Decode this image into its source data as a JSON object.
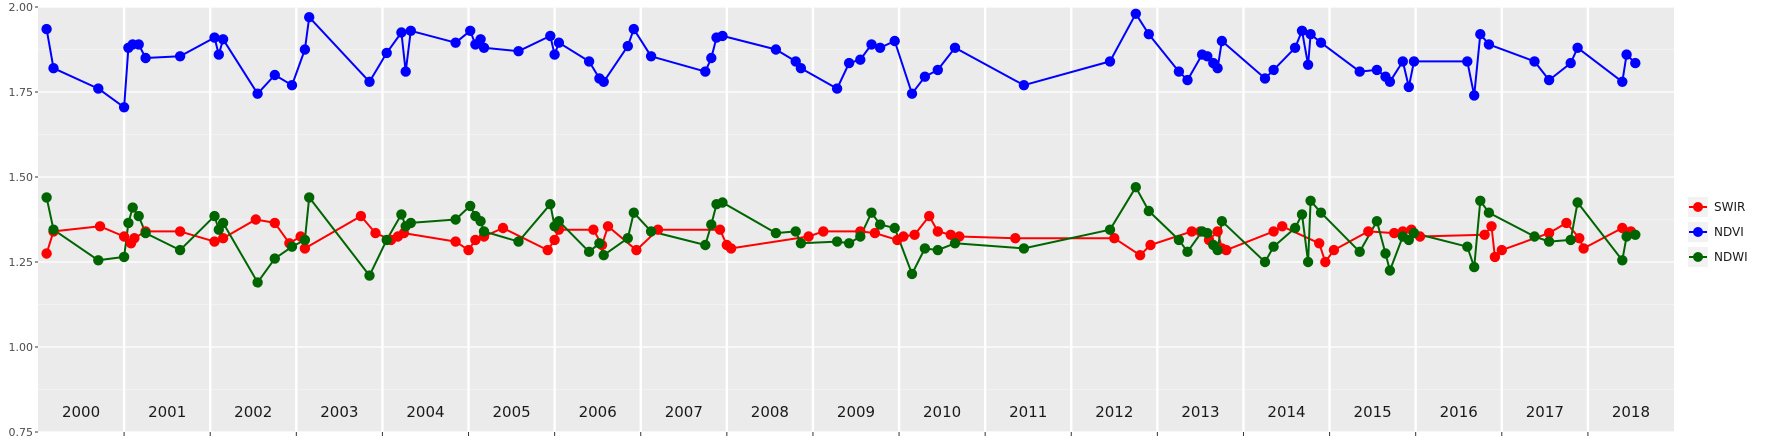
{
  "chart_data": {
    "type": "line",
    "title": "",
    "xlabel": "",
    "ylabel": "",
    "xlim": [
      2000.0,
      2019.0
    ],
    "ylim": [
      0.75,
      2.0
    ],
    "y_ticks": [
      "0.75",
      "1.00",
      "1.25",
      "1.50",
      "1.75",
      "2.00"
    ],
    "y_tick_values": [
      0.75,
      1.0,
      1.25,
      1.5,
      1.75,
      2.0
    ],
    "year_labels": [
      "2000",
      "2001",
      "2002",
      "2003",
      "2004",
      "2005",
      "2006",
      "2007",
      "2008",
      "2009",
      "2010",
      "2011",
      "2012",
      "2013",
      "2014",
      "2015",
      "2016",
      "2017",
      "2018"
    ],
    "year_values": [
      2000,
      2001,
      2002,
      2003,
      2004,
      2005,
      2006,
      2007,
      2008,
      2009,
      2010,
      2011,
      2012,
      2013,
      2014,
      2015,
      2016,
      2017,
      2018
    ],
    "grid": true,
    "legend_position": "right",
    "series": [
      {
        "name": "SWIR",
        "color": "#ff0000",
        "points": [
          [
            2000.1,
            1.275
          ],
          [
            2000.18,
            1.34
          ],
          [
            2000.72,
            1.355
          ],
          [
            2001.0,
            1.325
          ],
          [
            2001.08,
            1.305
          ],
          [
            2001.12,
            1.32
          ],
          [
            2001.25,
            1.34
          ],
          [
            2001.65,
            1.34
          ],
          [
            2002.05,
            1.31
          ],
          [
            2002.15,
            1.32
          ],
          [
            2002.53,
            1.375
          ],
          [
            2002.75,
            1.365
          ],
          [
            2002.92,
            1.305
          ],
          [
            2003.05,
            1.325
          ],
          [
            2003.1,
            1.29
          ],
          [
            2003.75,
            1.385
          ],
          [
            2003.92,
            1.335
          ],
          [
            2004.1,
            1.315
          ],
          [
            2004.18,
            1.325
          ],
          [
            2004.25,
            1.335
          ],
          [
            2004.85,
            1.31
          ],
          [
            2005.0,
            1.285
          ],
          [
            2005.08,
            1.315
          ],
          [
            2005.18,
            1.325
          ],
          [
            2005.4,
            1.35
          ],
          [
            2005.92,
            1.285
          ],
          [
            2006.0,
            1.315
          ],
          [
            2006.05,
            1.345
          ],
          [
            2006.45,
            1.345
          ],
          [
            2006.55,
            1.3
          ],
          [
            2006.62,
            1.355
          ],
          [
            2006.95,
            1.285
          ],
          [
            2007.2,
            1.345
          ],
          [
            2007.92,
            1.345
          ],
          [
            2008.0,
            1.3
          ],
          [
            2008.05,
            1.29
          ],
          [
            2008.95,
            1.325
          ],
          [
            2009.12,
            1.34
          ],
          [
            2009.55,
            1.34
          ],
          [
            2009.72,
            1.335
          ],
          [
            2009.98,
            1.315
          ],
          [
            2010.05,
            1.325
          ],
          [
            2010.18,
            1.33
          ],
          [
            2010.35,
            1.385
          ],
          [
            2010.45,
            1.34
          ],
          [
            2010.6,
            1.33
          ],
          [
            2010.7,
            1.325
          ],
          [
            2011.35,
            1.32
          ],
          [
            2012.5,
            1.32
          ],
          [
            2012.8,
            1.27
          ],
          [
            2012.92,
            1.3
          ],
          [
            2013.4,
            1.34
          ],
          [
            2013.5,
            1.34
          ],
          [
            2013.6,
            1.315
          ],
          [
            2013.7,
            1.34
          ],
          [
            2013.75,
            1.29
          ],
          [
            2013.8,
            1.285
          ],
          [
            2014.35,
            1.34
          ],
          [
            2014.45,
            1.355
          ],
          [
            2014.88,
            1.305
          ],
          [
            2014.95,
            1.25
          ],
          [
            2015.05,
            1.285
          ],
          [
            2015.45,
            1.34
          ],
          [
            2015.75,
            1.335
          ],
          [
            2015.85,
            1.34
          ],
          [
            2015.95,
            1.345
          ],
          [
            2016.05,
            1.325
          ],
          [
            2016.8,
            1.33
          ],
          [
            2016.88,
            1.355
          ],
          [
            2016.92,
            1.265
          ],
          [
            2017.0,
            1.285
          ],
          [
            2017.55,
            1.335
          ],
          [
            2017.75,
            1.365
          ],
          [
            2017.9,
            1.32
          ],
          [
            2017.95,
            1.29
          ],
          [
            2018.4,
            1.35
          ],
          [
            2018.5,
            1.34
          ]
        ]
      },
      {
        "name": "NDVI",
        "color": "#0000ff",
        "points": [
          [
            2000.1,
            1.935
          ],
          [
            2000.18,
            1.82
          ],
          [
            2000.7,
            1.76
          ],
          [
            2001.0,
            1.705
          ],
          [
            2001.05,
            1.88
          ],
          [
            2001.1,
            1.89
          ],
          [
            2001.17,
            1.89
          ],
          [
            2001.25,
            1.85
          ],
          [
            2001.65,
            1.855
          ],
          [
            2002.05,
            1.91
          ],
          [
            2002.1,
            1.86
          ],
          [
            2002.15,
            1.905
          ],
          [
            2002.55,
            1.745
          ],
          [
            2002.75,
            1.8
          ],
          [
            2002.95,
            1.77
          ],
          [
            2003.1,
            1.875
          ],
          [
            2003.15,
            1.97
          ],
          [
            2003.85,
            1.78
          ],
          [
            2004.05,
            1.865
          ],
          [
            2004.22,
            1.925
          ],
          [
            2004.27,
            1.81
          ],
          [
            2004.33,
            1.93
          ],
          [
            2004.85,
            1.895
          ],
          [
            2005.02,
            1.93
          ],
          [
            2005.08,
            1.89
          ],
          [
            2005.14,
            1.905
          ],
          [
            2005.18,
            1.88
          ],
          [
            2005.58,
            1.87
          ],
          [
            2005.95,
            1.915
          ],
          [
            2006.0,
            1.86
          ],
          [
            2006.05,
            1.895
          ],
          [
            2006.4,
            1.84
          ],
          [
            2006.52,
            1.79
          ],
          [
            2006.57,
            1.78
          ],
          [
            2006.85,
            1.885
          ],
          [
            2006.92,
            1.935
          ],
          [
            2007.12,
            1.855
          ],
          [
            2007.75,
            1.81
          ],
          [
            2007.82,
            1.85
          ],
          [
            2007.88,
            1.91
          ],
          [
            2007.95,
            1.915
          ],
          [
            2008.57,
            1.875
          ],
          [
            2008.8,
            1.84
          ],
          [
            2008.86,
            1.82
          ],
          [
            2009.28,
            1.76
          ],
          [
            2009.42,
            1.835
          ],
          [
            2009.55,
            1.845
          ],
          [
            2009.68,
            1.89
          ],
          [
            2009.78,
            1.88
          ],
          [
            2009.95,
            1.9
          ],
          [
            2010.15,
            1.745
          ],
          [
            2010.3,
            1.795
          ],
          [
            2010.45,
            1.815
          ],
          [
            2010.65,
            1.88
          ],
          [
            2011.45,
            1.77
          ],
          [
            2012.45,
            1.84
          ],
          [
            2012.75,
            1.98
          ],
          [
            2012.9,
            1.92
          ],
          [
            2013.25,
            1.81
          ],
          [
            2013.35,
            1.785
          ],
          [
            2013.52,
            1.86
          ],
          [
            2013.58,
            1.855
          ],
          [
            2013.65,
            1.835
          ],
          [
            2013.7,
            1.82
          ],
          [
            2013.75,
            1.9
          ],
          [
            2014.25,
            1.79
          ],
          [
            2014.35,
            1.815
          ],
          [
            2014.6,
            1.88
          ],
          [
            2014.68,
            1.93
          ],
          [
            2014.75,
            1.83
          ],
          [
            2014.78,
            1.92
          ],
          [
            2014.9,
            1.895
          ],
          [
            2015.35,
            1.81
          ],
          [
            2015.55,
            1.815
          ],
          [
            2015.65,
            1.795
          ],
          [
            2015.7,
            1.78
          ],
          [
            2015.85,
            1.84
          ],
          [
            2015.92,
            1.765
          ],
          [
            2015.98,
            1.84
          ],
          [
            2016.6,
            1.84
          ],
          [
            2016.68,
            1.74
          ],
          [
            2016.75,
            1.92
          ],
          [
            2016.85,
            1.89
          ],
          [
            2017.38,
            1.84
          ],
          [
            2017.55,
            1.785
          ],
          [
            2017.8,
            1.835
          ],
          [
            2017.88,
            1.88
          ],
          [
            2018.4,
            1.78
          ],
          [
            2018.45,
            1.86
          ],
          [
            2018.55,
            1.835
          ]
        ]
      },
      {
        "name": "NDWI",
        "color": "#006400",
        "points": [
          [
            2000.1,
            1.44
          ],
          [
            2000.18,
            1.345
          ],
          [
            2000.7,
            1.255
          ],
          [
            2001.0,
            1.265
          ],
          [
            2001.05,
            1.365
          ],
          [
            2001.1,
            1.41
          ],
          [
            2001.17,
            1.385
          ],
          [
            2001.25,
            1.335
          ],
          [
            2001.65,
            1.285
          ],
          [
            2002.05,
            1.385
          ],
          [
            2002.1,
            1.345
          ],
          [
            2002.15,
            1.365
          ],
          [
            2002.55,
            1.19
          ],
          [
            2002.75,
            1.26
          ],
          [
            2002.95,
            1.295
          ],
          [
            2003.1,
            1.315
          ],
          [
            2003.15,
            1.44
          ],
          [
            2003.85,
            1.21
          ],
          [
            2004.05,
            1.315
          ],
          [
            2004.22,
            1.39
          ],
          [
            2004.27,
            1.355
          ],
          [
            2004.33,
            1.365
          ],
          [
            2004.85,
            1.375
          ],
          [
            2005.02,
            1.415
          ],
          [
            2005.08,
            1.385
          ],
          [
            2005.14,
            1.37
          ],
          [
            2005.18,
            1.34
          ],
          [
            2005.58,
            1.31
          ],
          [
            2005.95,
            1.42
          ],
          [
            2006.0,
            1.355
          ],
          [
            2006.05,
            1.37
          ],
          [
            2006.4,
            1.28
          ],
          [
            2006.52,
            1.305
          ],
          [
            2006.57,
            1.27
          ],
          [
            2006.85,
            1.32
          ],
          [
            2006.92,
            1.395
          ],
          [
            2007.12,
            1.34
          ],
          [
            2007.75,
            1.3
          ],
          [
            2007.82,
            1.36
          ],
          [
            2007.88,
            1.42
          ],
          [
            2007.95,
            1.425
          ],
          [
            2008.57,
            1.335
          ],
          [
            2008.8,
            1.34
          ],
          [
            2008.86,
            1.305
          ],
          [
            2009.28,
            1.31
          ],
          [
            2009.42,
            1.305
          ],
          [
            2009.55,
            1.325
          ],
          [
            2009.68,
            1.395
          ],
          [
            2009.78,
            1.36
          ],
          [
            2009.95,
            1.35
          ],
          [
            2010.15,
            1.215
          ],
          [
            2010.3,
            1.29
          ],
          [
            2010.45,
            1.285
          ],
          [
            2010.65,
            1.305
          ],
          [
            2011.45,
            1.29
          ],
          [
            2012.45,
            1.345
          ],
          [
            2012.75,
            1.47
          ],
          [
            2012.9,
            1.4
          ],
          [
            2013.25,
            1.315
          ],
          [
            2013.35,
            1.28
          ],
          [
            2013.52,
            1.34
          ],
          [
            2013.58,
            1.335
          ],
          [
            2013.65,
            1.3
          ],
          [
            2013.7,
            1.285
          ],
          [
            2013.75,
            1.37
          ],
          [
            2014.25,
            1.25
          ],
          [
            2014.35,
            1.295
          ],
          [
            2014.6,
            1.35
          ],
          [
            2014.68,
            1.39
          ],
          [
            2014.75,
            1.25
          ],
          [
            2014.78,
            1.43
          ],
          [
            2014.9,
            1.395
          ],
          [
            2015.35,
            1.28
          ],
          [
            2015.55,
            1.37
          ],
          [
            2015.65,
            1.275
          ],
          [
            2015.7,
            1.225
          ],
          [
            2015.85,
            1.325
          ],
          [
            2015.92,
            1.315
          ],
          [
            2015.98,
            1.335
          ],
          [
            2016.6,
            1.295
          ],
          [
            2016.68,
            1.235
          ],
          [
            2016.75,
            1.43
          ],
          [
            2016.85,
            1.395
          ],
          [
            2017.38,
            1.325
          ],
          [
            2017.55,
            1.31
          ],
          [
            2017.8,
            1.315
          ],
          [
            2017.88,
            1.425
          ],
          [
            2018.4,
            1.255
          ],
          [
            2018.45,
            1.325
          ],
          [
            2018.55,
            1.33
          ]
        ]
      }
    ]
  }
}
